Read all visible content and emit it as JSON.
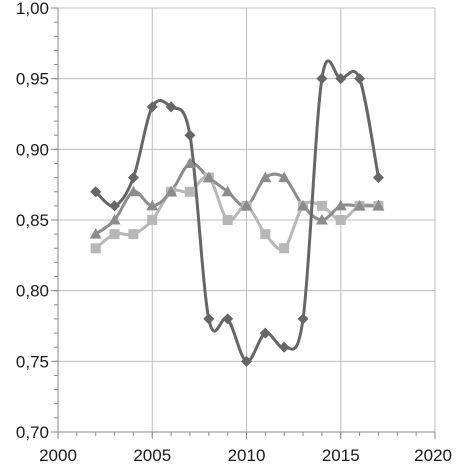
{
  "chart_data": {
    "type": "line",
    "title": "",
    "xlabel": "",
    "ylabel": "",
    "xlim": [
      2000,
      2020
    ],
    "ylim": [
      0.7,
      1.0
    ],
    "grid": true,
    "legend": "none",
    "x_ticks": [
      2000,
      2005,
      2010,
      2015,
      2020
    ],
    "x_tick_labels": [
      "2000",
      "2005",
      "2010",
      "2015",
      "2020"
    ],
    "y_ticks": [
      0.7,
      0.75,
      0.8,
      0.85,
      0.9,
      0.95,
      1.0
    ],
    "y_tick_labels": [
      "0,70",
      "0,75",
      "0,80",
      "0,85",
      "0,90",
      "0,95",
      "1,00"
    ],
    "x_minor_step": 1,
    "y_minor_step": 0.01,
    "series": [
      {
        "marker": "diamond",
        "color": "#666666",
        "x": [
          2002,
          2003,
          2004,
          2005,
          2006,
          2007,
          2008,
          2009,
          2010,
          2011,
          2012,
          2013,
          2014,
          2015,
          2016,
          2017
        ],
        "values": [
          0.87,
          0.86,
          0.88,
          0.93,
          0.93,
          0.91,
          0.78,
          0.78,
          0.75,
          0.77,
          0.76,
          0.78,
          0.95,
          0.95,
          0.95,
          0.88
        ]
      },
      {
        "marker": "triangle",
        "color": "#8c8c8c",
        "x": [
          2002,
          2003,
          2004,
          2005,
          2006,
          2007,
          2008,
          2009,
          2010,
          2011,
          2012,
          2013,
          2014,
          2015,
          2016,
          2017
        ],
        "values": [
          0.84,
          0.85,
          0.87,
          0.86,
          0.87,
          0.89,
          0.88,
          0.87,
          0.86,
          0.88,
          0.88,
          0.86,
          0.85,
          0.86,
          0.86,
          0.86
        ]
      },
      {
        "marker": "square",
        "color": "#b7b7b7",
        "x": [
          2002,
          2003,
          2004,
          2005,
          2006,
          2007,
          2008,
          2009,
          2010,
          2011,
          2012,
          2013,
          2014,
          2015,
          2016,
          2017
        ],
        "values": [
          0.83,
          0.84,
          0.84,
          0.85,
          0.87,
          0.87,
          0.88,
          0.85,
          0.86,
          0.84,
          0.83,
          0.86,
          0.86,
          0.85,
          0.86,
          0.86
        ]
      }
    ]
  }
}
